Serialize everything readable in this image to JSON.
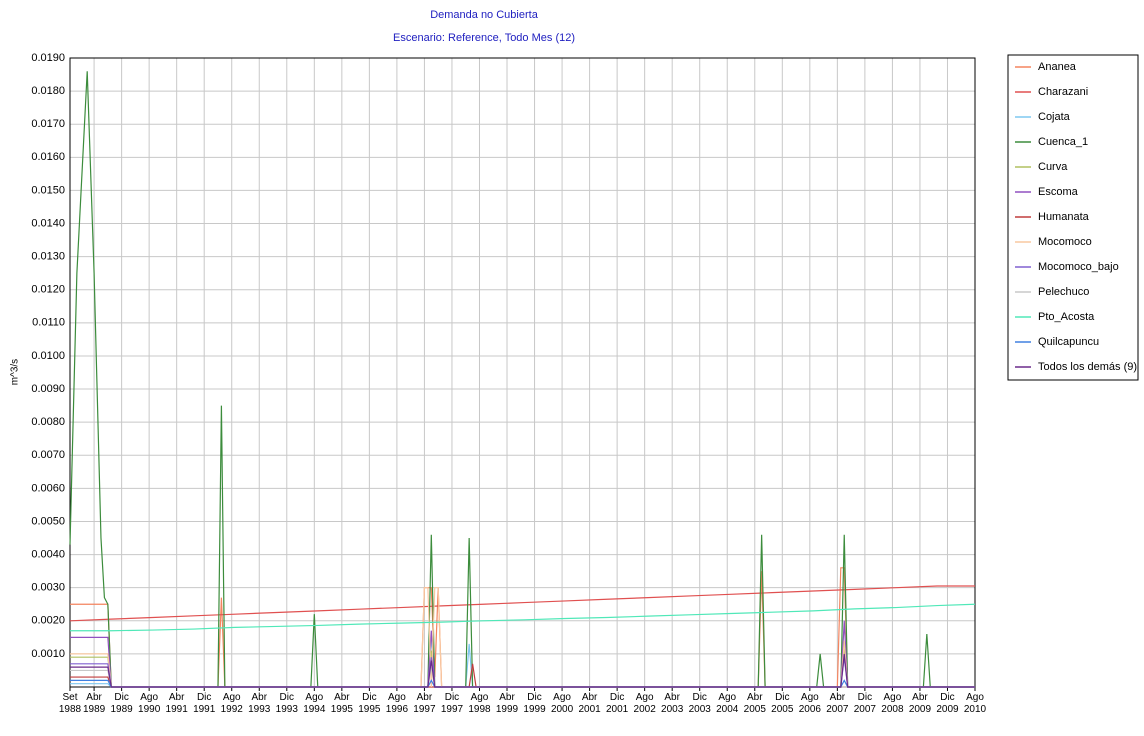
{
  "chart_data": {
    "type": "line",
    "title": "Demanda no Cubierta",
    "subtitle": "Escenario: Reference, Todo Mes (12)",
    "y_label": "m^3/s",
    "grid": true,
    "legend": "right",
    "xlim": [
      0,
      263
    ],
    "ylim": [
      0,
      0.019
    ],
    "xticks": [
      {
        "value": 0,
        "label": "Set 1988"
      },
      {
        "value": 7,
        "label": "Abr 1989"
      },
      {
        "value": 15,
        "label": "Dic 1989"
      },
      {
        "value": 23,
        "label": "Ago 1990"
      },
      {
        "value": 31,
        "label": "Abr 1991"
      },
      {
        "value": 39,
        "label": "Dic 1991"
      },
      {
        "value": 47,
        "label": "Ago 1992"
      },
      {
        "value": 55,
        "label": "Abr 1993"
      },
      {
        "value": 63,
        "label": "Dic 1993"
      },
      {
        "value": 71,
        "label": "Ago 1994"
      },
      {
        "value": 79,
        "label": "Abr 1995"
      },
      {
        "value": 87,
        "label": "Dic 1995"
      },
      {
        "value": 95,
        "label": "Ago 1996"
      },
      {
        "value": 103,
        "label": "Abr 1997"
      },
      {
        "value": 111,
        "label": "Dic 1997"
      },
      {
        "value": 119,
        "label": "Ago 1998"
      },
      {
        "value": 127,
        "label": "Abr 1999"
      },
      {
        "value": 135,
        "label": "Dic 1999"
      },
      {
        "value": 143,
        "label": "Ago 2000"
      },
      {
        "value": 151,
        "label": "Abr 2001"
      },
      {
        "value": 159,
        "label": "Dic 2001"
      },
      {
        "value": 167,
        "label": "Ago 2002"
      },
      {
        "value": 175,
        "label": "Abr 2003"
      },
      {
        "value": 183,
        "label": "Dic 2003"
      },
      {
        "value": 191,
        "label": "Ago 2004"
      },
      {
        "value": 199,
        "label": "Abr 2005"
      },
      {
        "value": 207,
        "label": "Dic 2005"
      },
      {
        "value": 215,
        "label": "Ago 2006"
      },
      {
        "value": 223,
        "label": "Abr 2007"
      },
      {
        "value": 231,
        "label": "Dic 2007"
      },
      {
        "value": 239,
        "label": "Ago 2008"
      },
      {
        "value": 247,
        "label": "Abr 2009"
      },
      {
        "value": 255,
        "label": "Dic 2009"
      },
      {
        "value": 263,
        "label": "Ago 2010"
      }
    ],
    "yticks": [
      {
        "value": 0.001,
        "label": "0.0010"
      },
      {
        "value": 0.002,
        "label": "0.0020"
      },
      {
        "value": 0.003,
        "label": "0.0030"
      },
      {
        "value": 0.004,
        "label": "0.0040"
      },
      {
        "value": 0.005,
        "label": "0.0050"
      },
      {
        "value": 0.006,
        "label": "0.0060"
      },
      {
        "value": 0.007,
        "label": "0.0070"
      },
      {
        "value": 0.008,
        "label": "0.0080"
      },
      {
        "value": 0.009,
        "label": "0.0090"
      },
      {
        "value": 0.01,
        "label": "0.0100"
      },
      {
        "value": 0.011,
        "label": "0.0110"
      },
      {
        "value": 0.012,
        "label": "0.0120"
      },
      {
        "value": 0.013,
        "label": "0.0130"
      },
      {
        "value": 0.014,
        "label": "0.0140"
      },
      {
        "value": 0.015,
        "label": "0.0150"
      },
      {
        "value": 0.016,
        "label": "0.0160"
      },
      {
        "value": 0.017,
        "label": "0.0170"
      },
      {
        "value": 0.018,
        "label": "0.0180"
      },
      {
        "value": 0.019,
        "label": "0.0190"
      }
    ],
    "series": [
      {
        "name": "Ananea",
        "color": "#f4845f",
        "x": [
          0,
          11,
          12,
          43,
          44,
          45,
          102,
          103,
          105,
          106,
          107,
          108,
          200,
          201,
          202,
          223,
          224,
          225,
          226,
          263
        ],
        "values": [
          0.0025,
          0.0025,
          0,
          0,
          0.0027,
          0,
          0,
          0.003,
          0.003,
          0.0003,
          0.003,
          0,
          0,
          0.0035,
          0,
          0,
          0.0036,
          0.0036,
          0,
          0
        ]
      },
      {
        "name": "Charazani",
        "color": "#e05050",
        "x": [
          0,
          12,
          24,
          36,
          48,
          60,
          72,
          84,
          96,
          108,
          120,
          132,
          144,
          156,
          168,
          180,
          192,
          204,
          216,
          228,
          240,
          252,
          263
        ],
        "values": [
          0.002,
          0.00205,
          0.0021,
          0.00215,
          0.0022,
          0.00225,
          0.0023,
          0.00235,
          0.0024,
          0.00245,
          0.0025,
          0.00255,
          0.0026,
          0.00265,
          0.0027,
          0.00275,
          0.0028,
          0.00285,
          0.0029,
          0.00295,
          0.003,
          0.00305,
          0.00305
        ]
      },
      {
        "name": "Cojata",
        "color": "#7ec8f0",
        "x": [
          0,
          11,
          12,
          104,
          105,
          106,
          115,
          116,
          117,
          224,
          225,
          226,
          263
        ],
        "values": [
          0.0001,
          0.0001,
          0,
          0,
          0.0015,
          0,
          0,
          0.0013,
          0,
          0,
          0.0012,
          0,
          0
        ]
      },
      {
        "name": "Cuenca_1",
        "color": "#3c8c3c",
        "x": [
          0,
          2,
          5,
          7,
          9,
          10,
          11,
          12,
          43,
          44,
          45,
          70,
          71,
          72,
          104,
          105,
          106,
          115,
          116,
          117,
          200,
          201,
          202,
          217,
          218,
          219,
          224,
          225,
          226,
          248,
          249,
          250,
          263
        ],
        "values": [
          0.0043,
          0.0125,
          0.0186,
          0.0125,
          0.0045,
          0.0027,
          0.0025,
          0,
          0,
          0.0085,
          0,
          0,
          0.0022,
          0,
          0,
          0.0046,
          0,
          0,
          0.0045,
          0,
          0,
          0.0046,
          0,
          0,
          0.001,
          0,
          0,
          0.0046,
          0,
          0,
          0.0016,
          0,
          0
        ]
      },
      {
        "name": "Curva",
        "color": "#b0c060",
        "x": [
          0,
          11,
          12,
          104,
          105,
          106,
          224,
          225,
          226,
          263
        ],
        "values": [
          0.0009,
          0.0009,
          0,
          0,
          0.0011,
          0,
          0,
          0.0012,
          0,
          0
        ]
      },
      {
        "name": "Escoma",
        "color": "#9050c0",
        "x": [
          0,
          11,
          12,
          104,
          105,
          106,
          224,
          225,
          226,
          263
        ],
        "values": [
          0.0015,
          0.0015,
          0,
          0,
          0.0017,
          0,
          0,
          0.002,
          0,
          0
        ]
      },
      {
        "name": "Humanata",
        "color": "#c03c3c",
        "x": [
          0,
          11,
          12,
          116,
          117,
          118,
          263
        ],
        "values": [
          0.0003,
          0.0003,
          0,
          0,
          0.0007,
          0,
          0
        ]
      },
      {
        "name": "Mocomoco",
        "color": "#f8c8a0",
        "x": [
          0,
          11,
          12,
          102,
          103,
          104,
          105,
          106,
          107,
          108,
          224,
          225,
          226,
          263
        ],
        "values": [
          0.001,
          0.001,
          0,
          0,
          0.003,
          0.003,
          0,
          0.003,
          0.003,
          0,
          0,
          0.0014,
          0,
          0
        ]
      },
      {
        "name": "Mocomoco_bajo",
        "color": "#8060d0",
        "x": [
          0,
          11,
          12,
          104,
          105,
          106,
          224,
          225,
          226,
          263
        ],
        "values": [
          0.0007,
          0.0007,
          0,
          0,
          0.0009,
          0,
          0,
          0.0009,
          0,
          0
        ]
      },
      {
        "name": "Pelechuco",
        "color": "#c8c8c8",
        "x": [
          0,
          11,
          12,
          104,
          105,
          106,
          263
        ],
        "values": [
          0.0005,
          0.0005,
          0,
          0,
          0.0006,
          0,
          0
        ]
      },
      {
        "name": "Pto_Acosta",
        "color": "#50e8b8",
        "x": [
          0,
          12,
          24,
          36,
          48,
          60,
          72,
          84,
          96,
          108,
          120,
          132,
          144,
          156,
          168,
          180,
          192,
          204,
          216,
          228,
          240,
          252,
          263
        ],
        "values": [
          0.0017,
          0.0017,
          0.00172,
          0.00175,
          0.0018,
          0.00183,
          0.00186,
          0.0019,
          0.00193,
          0.00196,
          0.002,
          0.00203,
          0.00207,
          0.0021,
          0.00214,
          0.00218,
          0.00222,
          0.00226,
          0.0023,
          0.00236,
          0.0024,
          0.00246,
          0.0025
        ]
      },
      {
        "name": "Quilcapuncu",
        "color": "#4080e0",
        "x": [
          0,
          11,
          12,
          104,
          105,
          106,
          224,
          225,
          226,
          263
        ],
        "values": [
          0.0002,
          0.0002,
          0,
          0,
          0.0002,
          0,
          0,
          0.0002,
          0,
          0
        ]
      },
      {
        "name": "Todos los demás (9)",
        "color": "#6a2a8a",
        "x": [
          0,
          11,
          12,
          104,
          105,
          106,
          224,
          225,
          226,
          263
        ],
        "values": [
          0.0006,
          0.0006,
          0,
          0,
          0.0008,
          0,
          0,
          0.001,
          0,
          0
        ]
      }
    ]
  }
}
